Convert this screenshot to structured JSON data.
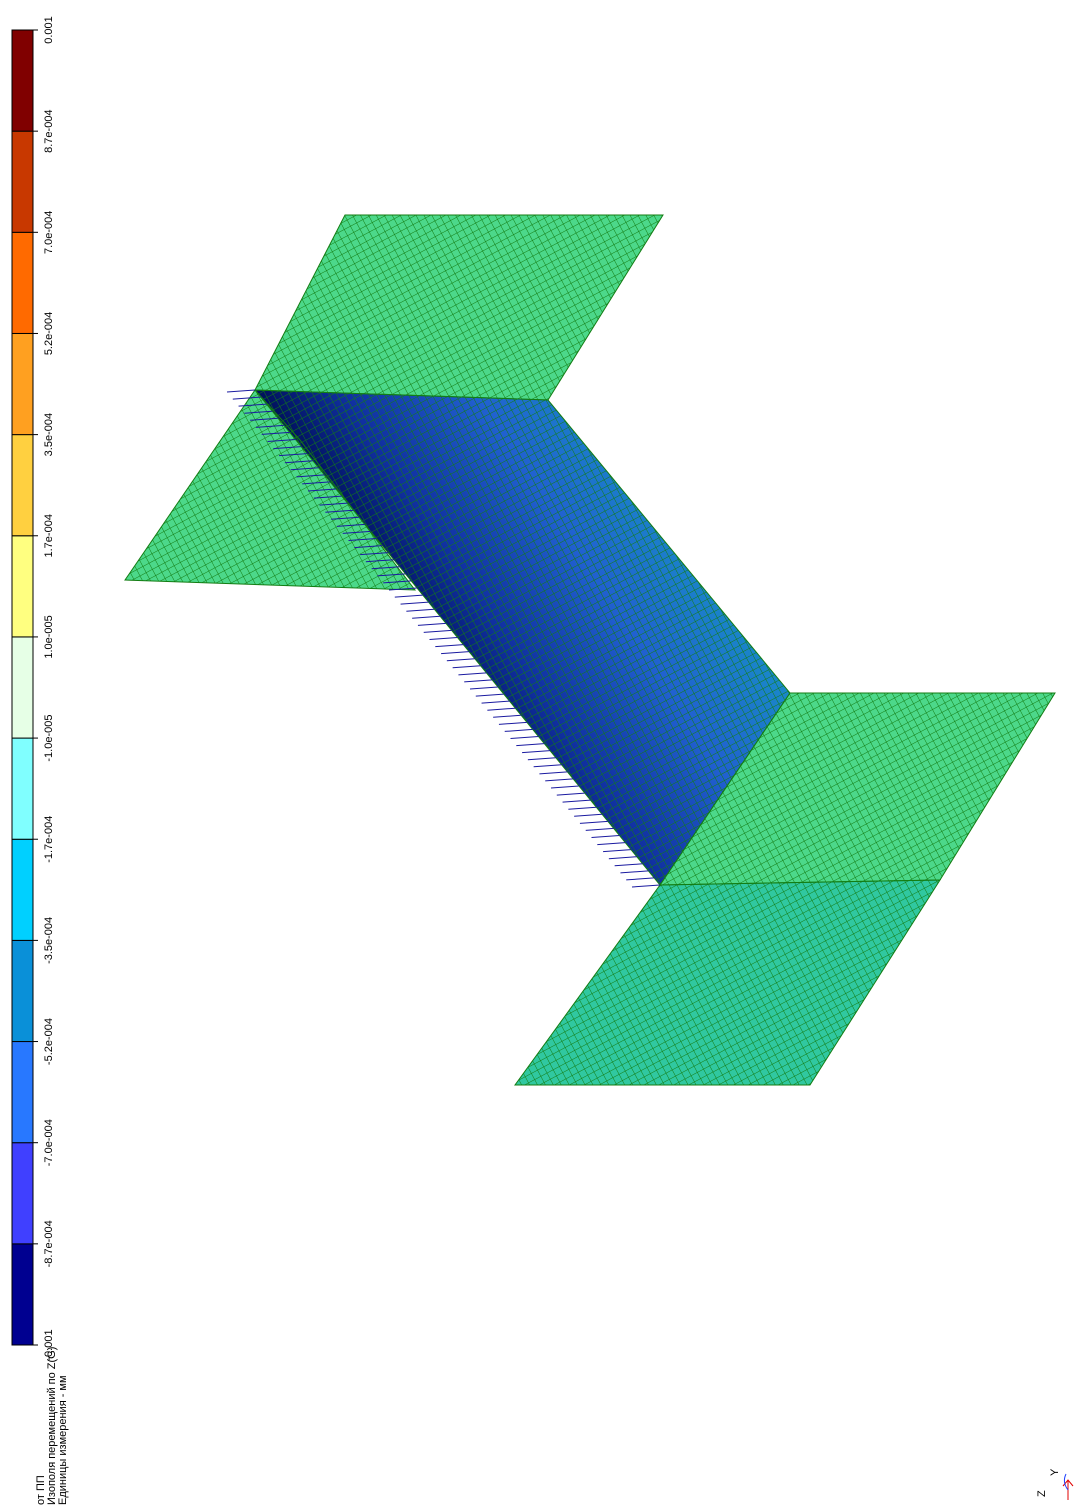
{
  "legend": {
    "ticks": [
      -0.001,
      {
        "value": -0.00087,
        "label": "-8.7e-004"
      },
      {
        "value": -0.0007,
        "label": "-7.0e-004"
      },
      {
        "value": -0.00052,
        "label": "-5.2e-004"
      },
      {
        "value": -0.00035,
        "label": "-3.5e-004"
      },
      {
        "value": -0.00017,
        "label": "-1.7e-004"
      },
      {
        "value": -1e-05,
        "label": "-1.0e-005"
      },
      {
        "value": 1e-05,
        "label": "1.0e-005"
      },
      {
        "value": 0.00017,
        "label": "1.7e-004"
      },
      {
        "value": 0.00035,
        "label": "3.5e-004"
      },
      {
        "value": 0.00052,
        "label": "5.2e-004"
      },
      {
        "value": 0.0007,
        "label": "7.0e-004"
      },
      {
        "value": 0.00087,
        "label": "8.7e-004"
      },
      0.001
    ],
    "colors": [
      "#000090",
      "#4040ff",
      "#2878ff",
      "#0a90d8",
      "#00d0ff",
      "#80ffff",
      "#e6ffe6",
      "#ffff80",
      "#ffd040",
      "#ffa020",
      "#ff6a00",
      "#c83800",
      "#800000"
    ]
  },
  "caption": [
    "от ПП",
    "Изополя  перемещений по Z(G)",
    "Единицы измерения - мм"
  ],
  "axes": {
    "z": "Z",
    "y": "Y"
  }
}
